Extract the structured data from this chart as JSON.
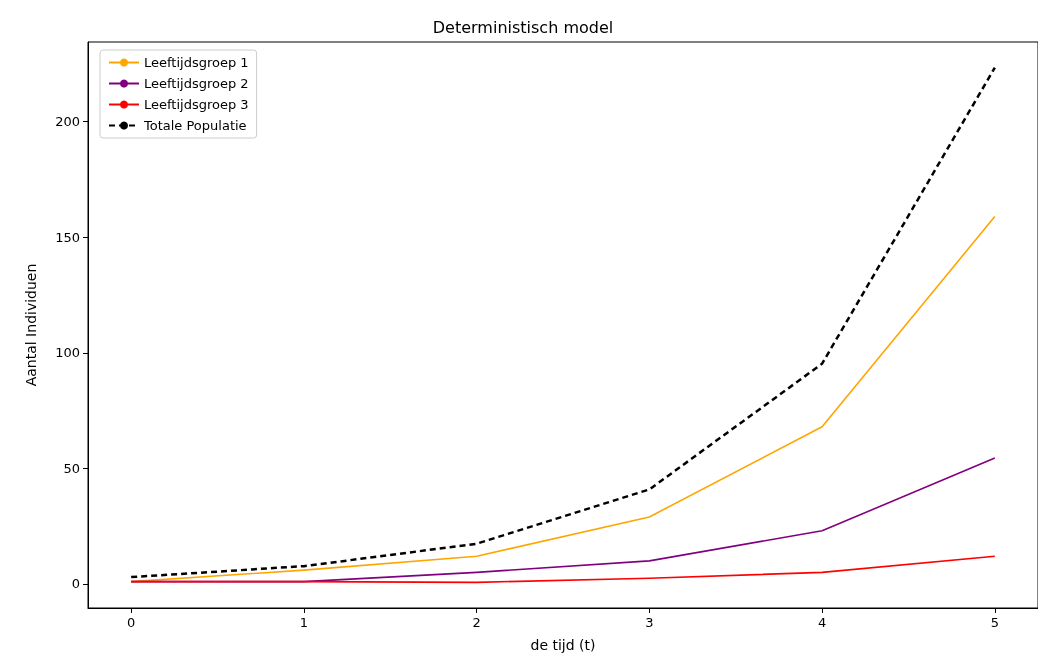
{
  "chart_data": {
    "type": "line",
    "title": "Deterministisch model",
    "xlabel": "de tijd (t)",
    "ylabel": "Aantal Individuen",
    "x": [
      0,
      1,
      2,
      3,
      4,
      5
    ],
    "series": [
      {
        "name": "Leeftijdsgroep 1",
        "color": "#ffa500",
        "values": [
          1,
          6,
          12,
          29,
          68,
          159
        ]
      },
      {
        "name": "Leeftijdsgroep 2",
        "color": "#800080",
        "values": [
          1,
          1,
          5,
          10,
          23,
          54.5
        ]
      },
      {
        "name": "Leeftijdsgroep 3",
        "color": "#ff0000",
        "values": [
          1,
          1,
          0.7,
          2.5,
          5,
          12
        ]
      },
      {
        "name": "Totale Populatie",
        "color": "#000000",
        "values": [
          3,
          7.7,
          17.4,
          40.9,
          95.3,
          223.4
        ],
        "line_style": "dashed"
      }
    ],
    "xlim": [
      -0.25,
      5.25
    ],
    "xticks": [
      0,
      1,
      2,
      3,
      4,
      5
    ],
    "ylim": [
      -10.4,
      234.5
    ],
    "yticks": [
      0,
      50,
      100,
      150,
      200
    ],
    "grid": false,
    "legend": "top left",
    "marker": "none"
  }
}
